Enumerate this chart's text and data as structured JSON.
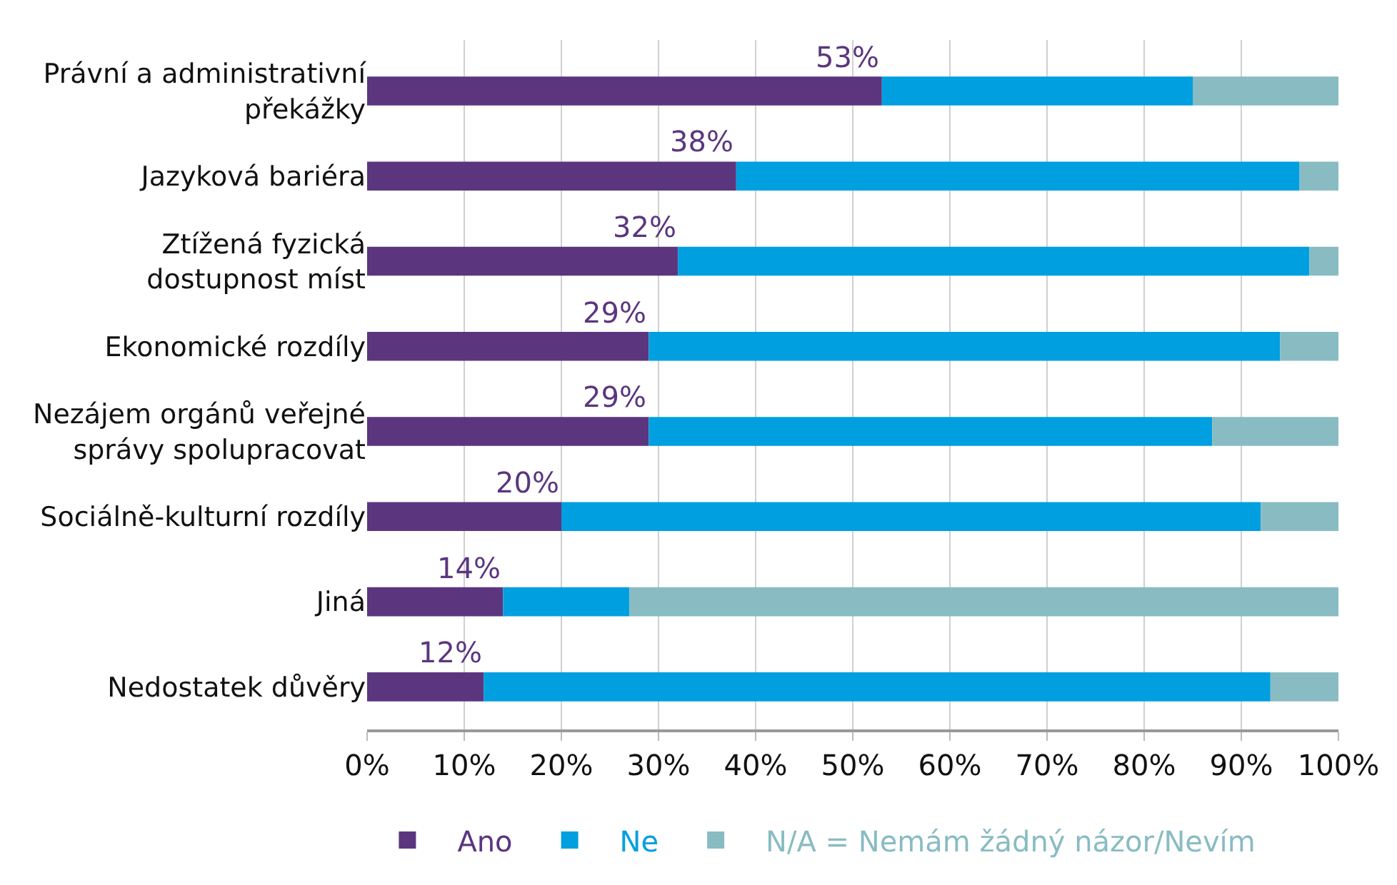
{
  "chart_data": {
    "type": "bar",
    "orientation": "horizontal",
    "stacked": true,
    "categories": [
      "Právní a administrativní\npřekážky",
      "Jazyková bariéra",
      "Ztížená fyzická\ndostupnost míst",
      "Ekonomické rozdíly",
      "Nezájem orgánů veřejné\nsprávy spolupracovat",
      "Sociálně-kulturní rozdíly",
      "Jiná",
      "Nedostatek důvěry"
    ],
    "series": [
      {
        "name": "Ano",
        "color": "#5b367f",
        "values": [
          53,
          38,
          32,
          29,
          29,
          20,
          14,
          12
        ],
        "value_labels": [
          "53%",
          "38%",
          "32%",
          "29%",
          "29%",
          "20%",
          "14%",
          "12%"
        ]
      },
      {
        "name": "Ne",
        "color": "#009fe0",
        "values": [
          32,
          58,
          65,
          65,
          58,
          72,
          13,
          81
        ]
      },
      {
        "name": "N/A = Nemám žádný názor/Nevím",
        "color": "#88bcc2",
        "values": [
          15,
          4,
          3,
          6,
          13,
          8,
          73,
          7
        ]
      }
    ],
    "xlim": [
      0,
      100
    ],
    "xticks": [
      {
        "value": 0,
        "label": "0%"
      },
      {
        "value": 10,
        "label": "10%"
      },
      {
        "value": 20,
        "label": "20%"
      },
      {
        "value": 30,
        "label": "30%"
      },
      {
        "value": 40,
        "label": "40%"
      },
      {
        "value": 50,
        "label": "50%"
      },
      {
        "value": 60,
        "label": "60%"
      },
      {
        "value": 70,
        "label": "70%"
      },
      {
        "value": 80,
        "label": "80%"
      },
      {
        "value": 90,
        "label": "90%"
      },
      {
        "value": 100,
        "label": "100%"
      }
    ],
    "grid": "x",
    "legend": "bottom"
  }
}
